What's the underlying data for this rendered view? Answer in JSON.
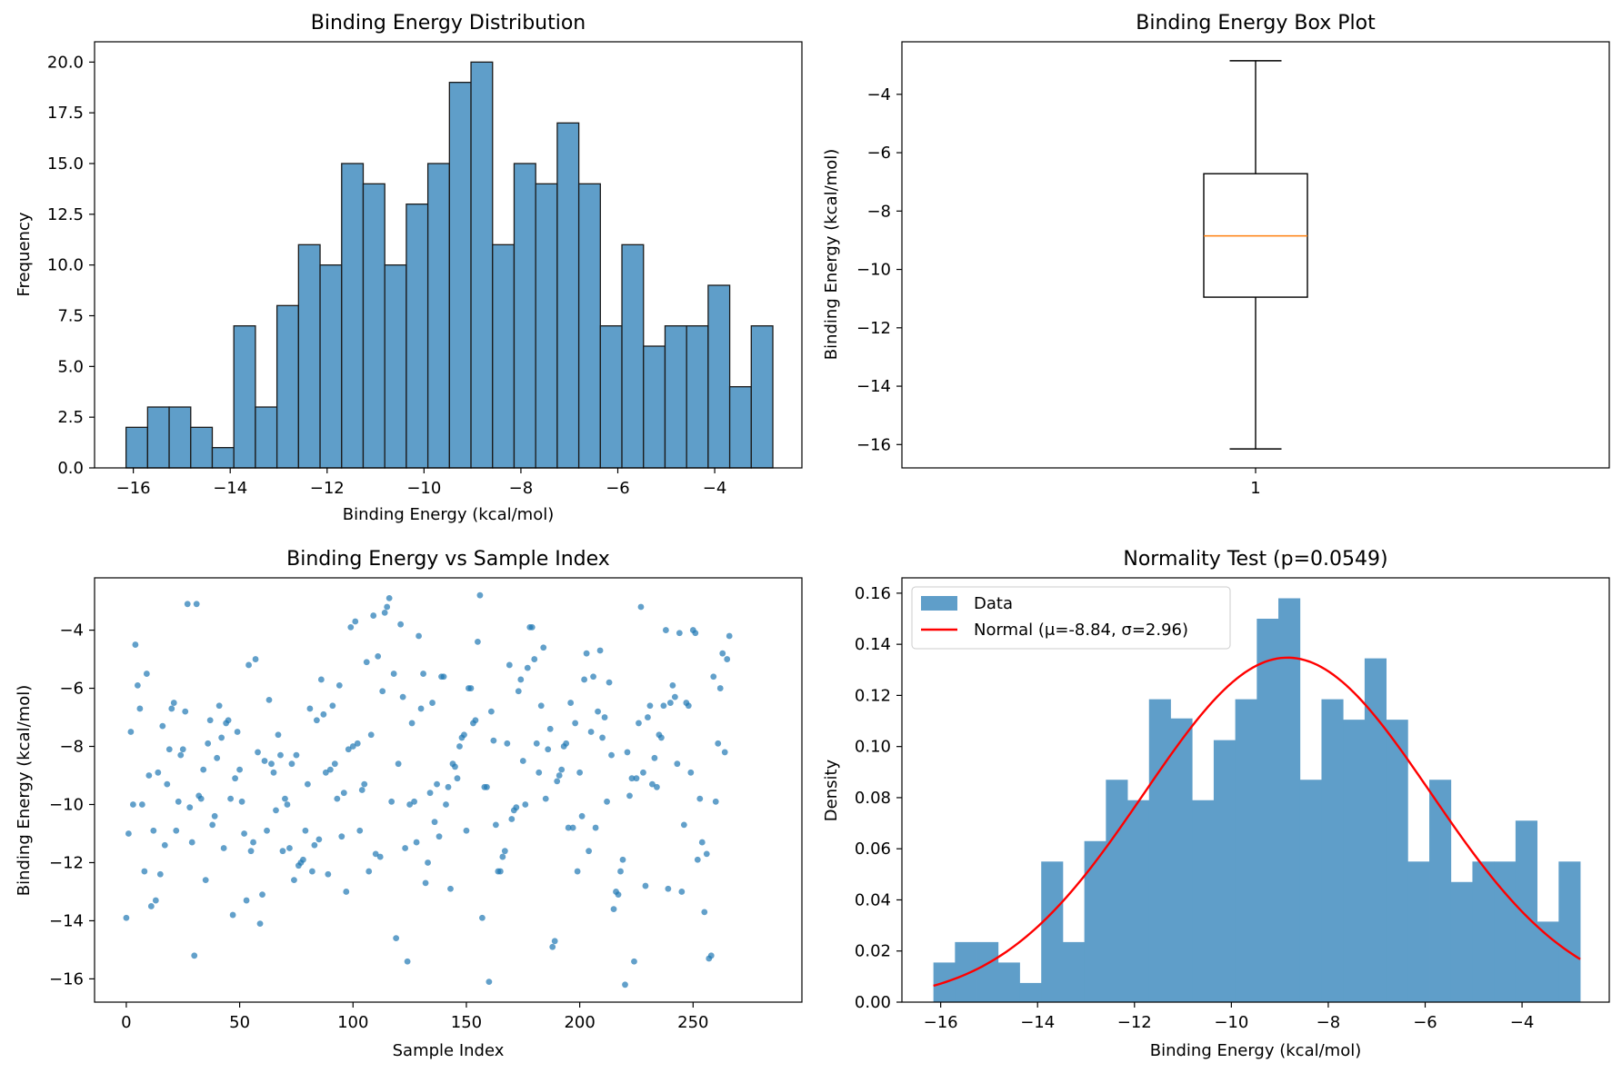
{
  "chart_data": [
    {
      "type": "bar",
      "title": "Binding Energy Distribution",
      "xlabel": "Binding Energy (kcal/mol)",
      "ylabel": "Frequency",
      "xlim": [
        -16.8,
        -2.2
      ],
      "ylim": [
        0,
        21
      ],
      "bin_start": -16.15,
      "bin_width": 0.445,
      "values": [
        2,
        3,
        3,
        2,
        1,
        7,
        3,
        8,
        11,
        10,
        15,
        14,
        10,
        13,
        15,
        19,
        20,
        11,
        15,
        14,
        17,
        14,
        7,
        11,
        6,
        7,
        7,
        9,
        4,
        7
      ],
      "xticks": [
        -16,
        -14,
        -12,
        -10,
        -8,
        -6,
        -4
      ],
      "yticks": [
        0.0,
        2.5,
        5.0,
        7.5,
        10.0,
        12.5,
        15.0,
        17.5,
        20.0
      ],
      "color": "#5f9ec9",
      "grid": false
    },
    {
      "type": "box",
      "title": "Binding Energy Box Plot",
      "xlabel": "",
      "ylabel": "Binding Energy (kcal/mol)",
      "category": "1",
      "whisker_low": -16.15,
      "q1": -10.95,
      "median": -8.85,
      "q3": -6.72,
      "whisker_high": -2.85,
      "ylim": [
        -16.8,
        -2.2
      ],
      "yticks": [
        -16,
        -14,
        -12,
        -10,
        -8,
        -6,
        -4
      ],
      "median_color": "#ff7f0e",
      "grid": false
    },
    {
      "type": "scatter",
      "title": "Binding Energy vs Sample Index",
      "xlabel": "Sample Index",
      "ylabel": "Binding Energy (kcal/mol)",
      "xlim": [
        -14,
        298
      ],
      "ylim": [
        -16.8,
        -2.2
      ],
      "xticks": [
        0,
        50,
        100,
        150,
        200,
        250
      ],
      "yticks": [
        -16,
        -14,
        -12,
        -10,
        -8,
        -6,
        -4
      ],
      "color": "#1f77b4",
      "points": [
        [
          0,
          -13.9
        ],
        [
          1,
          -11.0
        ],
        [
          2,
          -7.5
        ],
        [
          3,
          -10.0
        ],
        [
          4,
          -4.5
        ],
        [
          5,
          -5.9
        ],
        [
          6,
          -6.7
        ],
        [
          7,
          -10.0
        ],
        [
          8,
          -12.3
        ],
        [
          9,
          -5.5
        ],
        [
          10,
          -9.0
        ],
        [
          11,
          -13.5
        ],
        [
          12,
          -10.9
        ],
        [
          13,
          -13.3
        ],
        [
          14,
          -8.9
        ],
        [
          15,
          -12.4
        ],
        [
          16,
          -7.3
        ],
        [
          17,
          -11.4
        ],
        [
          18,
          -9.3
        ],
        [
          19,
          -8.1
        ],
        [
          20,
          -6.7
        ],
        [
          21,
          -6.5
        ],
        [
          22,
          -10.9
        ],
        [
          23,
          -9.9
        ],
        [
          24,
          -8.3
        ],
        [
          25,
          -8.1
        ],
        [
          26,
          -6.8
        ],
        [
          27,
          -3.1
        ],
        [
          28,
          -10.1
        ],
        [
          29,
          -11.3
        ],
        [
          30,
          -15.2
        ],
        [
          31,
          -3.1
        ],
        [
          32,
          -9.7
        ],
        [
          33,
          -9.8
        ],
        [
          34,
          -8.8
        ],
        [
          35,
          -12.6
        ],
        [
          36,
          -7.9
        ],
        [
          37,
          -7.1
        ],
        [
          38,
          -10.7
        ],
        [
          39,
          -10.4
        ],
        [
          40,
          -8.4
        ],
        [
          41,
          -6.6
        ],
        [
          42,
          -7.7
        ],
        [
          43,
          -11.5
        ],
        [
          44,
          -7.2
        ],
        [
          45,
          -7.1
        ],
        [
          46,
          -9.8
        ],
        [
          47,
          -13.8
        ],
        [
          48,
          -9.1
        ],
        [
          49,
          -7.5
        ],
        [
          50,
          -8.8
        ],
        [
          51,
          -9.9
        ],
        [
          52,
          -11.0
        ],
        [
          53,
          -13.3
        ],
        [
          54,
          -5.2
        ],
        [
          55,
          -11.6
        ],
        [
          56,
          -11.3
        ],
        [
          57,
          -5.0
        ],
        [
          58,
          -8.2
        ],
        [
          59,
          -14.1
        ],
        [
          60,
          -13.1
        ],
        [
          61,
          -8.5
        ],
        [
          62,
          -10.9
        ],
        [
          63,
          -6.4
        ],
        [
          64,
          -8.6
        ],
        [
          65,
          -8.9
        ],
        [
          66,
          -10.2
        ],
        [
          67,
          -7.6
        ],
        [
          68,
          -8.3
        ],
        [
          69,
          -11.6
        ],
        [
          70,
          -9.8
        ],
        [
          71,
          -10.0
        ],
        [
          72,
          -11.5
        ],
        [
          73,
          -8.6
        ],
        [
          74,
          -12.6
        ],
        [
          75,
          -8.3
        ],
        [
          76,
          -12.1
        ],
        [
          77,
          -12.0
        ],
        [
          78,
          -11.9
        ],
        [
          79,
          -10.9
        ],
        [
          80,
          -9.3
        ],
        [
          81,
          -6.7
        ],
        [
          82,
          -12.3
        ],
        [
          83,
          -11.4
        ],
        [
          84,
          -7.1
        ],
        [
          85,
          -11.2
        ],
        [
          86,
          -5.7
        ],
        [
          87,
          -6.9
        ],
        [
          88,
          -8.9
        ],
        [
          89,
          -12.4
        ],
        [
          90,
          -8.8
        ],
        [
          91,
          -6.6
        ],
        [
          92,
          -8.6
        ],
        [
          93,
          -9.8
        ],
        [
          94,
          -5.9
        ],
        [
          95,
          -11.1
        ],
        [
          96,
          -9.6
        ],
        [
          97,
          -13.0
        ],
        [
          98,
          -8.1
        ],
        [
          99,
          -3.9
        ],
        [
          100,
          -8.0
        ],
        [
          101,
          -3.7
        ],
        [
          102,
          -7.9
        ],
        [
          103,
          -10.9
        ],
        [
          104,
          -9.5
        ],
        [
          105,
          -9.3
        ],
        [
          106,
          -5.1
        ],
        [
          107,
          -12.3
        ],
        [
          108,
          -7.6
        ],
        [
          109,
          -3.5
        ],
        [
          110,
          -11.7
        ],
        [
          111,
          -4.9
        ],
        [
          112,
          -11.8
        ],
        [
          113,
          -6.1
        ],
        [
          114,
          -3.4
        ],
        [
          115,
          -3.2
        ],
        [
          116,
          -2.9
        ],
        [
          117,
          -9.9
        ],
        [
          118,
          -5.5
        ],
        [
          119,
          -14.6
        ],
        [
          120,
          -8.6
        ],
        [
          121,
          -3.8
        ],
        [
          122,
          -6.3
        ],
        [
          123,
          -11.5
        ],
        [
          124,
          -15.4
        ],
        [
          125,
          -10.0
        ],
        [
          126,
          -7.2
        ],
        [
          127,
          -9.9
        ],
        [
          128,
          -11.3
        ],
        [
          129,
          -4.2
        ],
        [
          130,
          -6.7
        ],
        [
          131,
          -5.5
        ],
        [
          132,
          -12.7
        ],
        [
          133,
          -12.0
        ],
        [
          134,
          -9.6
        ],
        [
          135,
          -6.5
        ],
        [
          136,
          -10.6
        ],
        [
          137,
          -9.3
        ],
        [
          138,
          -11.1
        ],
        [
          139,
          -5.6
        ],
        [
          140,
          -5.6
        ],
        [
          141,
          -10.0
        ],
        [
          142,
          -9.4
        ],
        [
          143,
          -12.9
        ],
        [
          144,
          -8.6
        ],
        [
          145,
          -8.7
        ],
        [
          146,
          -9.1
        ],
        [
          147,
          -8.0
        ],
        [
          148,
          -7.7
        ],
        [
          149,
          -7.6
        ],
        [
          150,
          -10.9
        ],
        [
          151,
          -6.0
        ],
        [
          152,
          -6.0
        ],
        [
          153,
          -7.2
        ],
        [
          154,
          -7.1
        ],
        [
          155,
          -4.4
        ],
        [
          156,
          -2.8
        ],
        [
          157,
          -13.9
        ],
        [
          158,
          -9.4
        ],
        [
          159,
          -9.4
        ],
        [
          160,
          -16.1
        ],
        [
          161,
          -6.8
        ],
        [
          162,
          -7.8
        ],
        [
          163,
          -10.7
        ],
        [
          164,
          -12.3
        ],
        [
          165,
          -12.3
        ],
        [
          166,
          -11.8
        ],
        [
          167,
          -11.6
        ],
        [
          168,
          -7.9
        ],
        [
          169,
          -5.2
        ],
        [
          170,
          -10.5
        ],
        [
          171,
          -10.2
        ],
        [
          172,
          -10.1
        ],
        [
          173,
          -6.1
        ],
        [
          174,
          -5.7
        ],
        [
          175,
          -8.5
        ],
        [
          176,
          -10.0
        ],
        [
          177,
          -5.3
        ],
        [
          178,
          -3.9
        ],
        [
          179,
          -3.9
        ],
        [
          180,
          -5.0
        ],
        [
          181,
          -7.9
        ],
        [
          182,
          -8.9
        ],
        [
          183,
          -6.6
        ],
        [
          184,
          -4.6
        ],
        [
          185,
          -9.8
        ],
        [
          186,
          -8.1
        ],
        [
          187,
          -7.4
        ],
        [
          188,
          -14.9
        ],
        [
          189,
          -14.7
        ],
        [
          190,
          -9.2
        ],
        [
          191,
          -9.0
        ],
        [
          192,
          -8.8
        ],
        [
          193,
          -8.0
        ],
        [
          194,
          -7.9
        ],
        [
          195,
          -10.8
        ],
        [
          196,
          -6.5
        ],
        [
          197,
          -10.8
        ],
        [
          198,
          -7.2
        ],
        [
          199,
          -12.3
        ],
        [
          200,
          -8.9
        ],
        [
          201,
          -10.4
        ],
        [
          202,
          -5.7
        ],
        [
          203,
          -4.8
        ],
        [
          204,
          -11.6
        ],
        [
          205,
          -7.5
        ],
        [
          206,
          -5.6
        ],
        [
          207,
          -10.8
        ],
        [
          208,
          -6.8
        ],
        [
          209,
          -4.7
        ],
        [
          210,
          -7.7
        ],
        [
          211,
          -7.0
        ],
        [
          212,
          -9.9
        ],
        [
          213,
          -5.8
        ],
        [
          214,
          -8.3
        ],
        [
          215,
          -13.6
        ],
        [
          216,
          -13.0
        ],
        [
          217,
          -13.1
        ],
        [
          218,
          -12.3
        ],
        [
          219,
          -11.9
        ],
        [
          220,
          -16.2
        ],
        [
          221,
          -8.2
        ],
        [
          222,
          -9.7
        ],
        [
          223,
          -9.1
        ],
        [
          224,
          -15.4
        ],
        [
          225,
          -9.1
        ],
        [
          226,
          -7.2
        ],
        [
          227,
          -3.2
        ],
        [
          228,
          -8.9
        ],
        [
          229,
          -12.8
        ],
        [
          230,
          -7.0
        ],
        [
          231,
          -6.6
        ],
        [
          232,
          -9.3
        ],
        [
          233,
          -8.4
        ],
        [
          234,
          -9.4
        ],
        [
          235,
          -7.6
        ],
        [
          236,
          -7.7
        ],
        [
          237,
          -6.6
        ],
        [
          238,
          -4.0
        ],
        [
          239,
          -12.9
        ],
        [
          240,
          -6.5
        ],
        [
          241,
          -5.9
        ],
        [
          242,
          -6.3
        ],
        [
          243,
          -8.6
        ],
        [
          244,
          -4.1
        ],
        [
          245,
          -13.0
        ],
        [
          246,
          -10.7
        ],
        [
          247,
          -6.5
        ],
        [
          248,
          -6.6
        ],
        [
          249,
          -8.9
        ],
        [
          250,
          -4.0
        ],
        [
          251,
          -4.1
        ],
        [
          252,
          -11.9
        ],
        [
          253,
          -9.8
        ],
        [
          254,
          -11.3
        ],
        [
          255,
          -13.7
        ],
        [
          256,
          -11.7
        ],
        [
          257,
          -15.3
        ],
        [
          258,
          -15.2
        ],
        [
          259,
          -5.6
        ],
        [
          260,
          -9.9
        ],
        [
          261,
          -7.9
        ],
        [
          262,
          -6.0
        ],
        [
          263,
          -4.8
        ],
        [
          264,
          -8.2
        ],
        [
          265,
          -5.0
        ],
        [
          266,
          -4.2
        ]
      ],
      "grid": false
    },
    {
      "type": "area",
      "title": "Normality Test (p=0.0549)",
      "xlabel": "Binding Energy (kcal/mol)",
      "ylabel": "Density",
      "xlim": [
        -16.8,
        -2.2
      ],
      "ylim": [
        0,
        0.166
      ],
      "bin_start": -16.15,
      "bin_width": 0.445,
      "values": [
        0.0155,
        0.0235,
        0.0235,
        0.0155,
        0.0075,
        0.055,
        0.0235,
        0.063,
        0.087,
        0.079,
        0.1185,
        0.111,
        0.079,
        0.1025,
        0.1185,
        0.15,
        0.158,
        0.087,
        0.1185,
        0.1105,
        0.1345,
        0.1105,
        0.055,
        0.087,
        0.047,
        0.055,
        0.055,
        0.071,
        0.0315,
        0.055
      ],
      "normal": {
        "mu": -8.84,
        "sigma": 2.96
      },
      "xticks": [
        -16,
        -14,
        -12,
        -10,
        -8,
        -6,
        -4
      ],
      "yticks": [
        0.0,
        0.02,
        0.04,
        0.06,
        0.08,
        0.1,
        0.12,
        0.14,
        0.16
      ],
      "legend": [
        "Data",
        "Normal (μ=-8.84, σ=2.96)"
      ],
      "legend_position": "top-left",
      "bar_color": "#5f9ec9",
      "line_color": "#ff0000",
      "grid": false
    }
  ]
}
